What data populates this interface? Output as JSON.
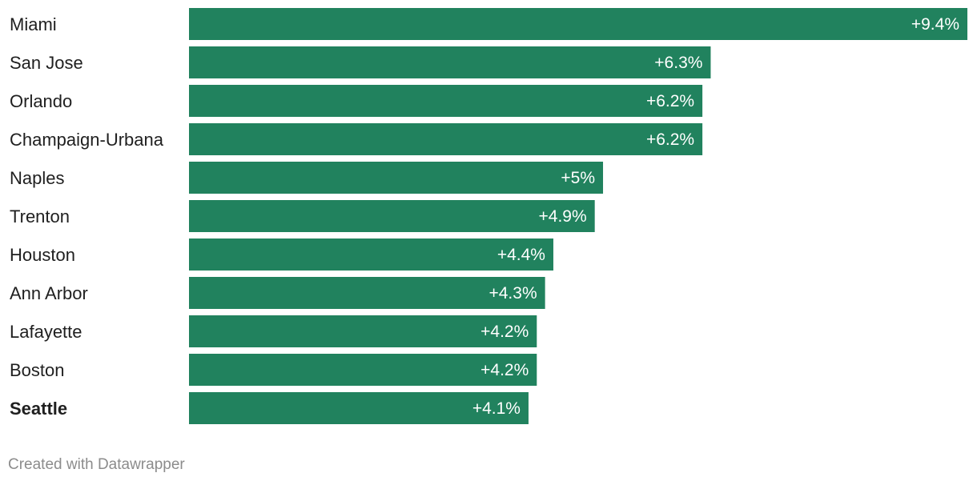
{
  "colors": {
    "bar": "#21825e",
    "label": "#1f1f1f",
    "value_label": "#ffffff",
    "credit": "#8c8c8c"
  },
  "chart_data": {
    "type": "bar",
    "orientation": "horizontal",
    "categories": [
      "Miami",
      "San Jose",
      "Orlando",
      "Champaign-Urbana",
      "Naples",
      "Trenton",
      "Houston",
      "Ann Arbor",
      "Lafayette",
      "Boston",
      "Seattle"
    ],
    "values": [
      9.4,
      6.3,
      6.2,
      6.2,
      5,
      4.9,
      4.4,
      4.3,
      4.2,
      4.2,
      4.1
    ],
    "value_labels": [
      "+9.4%",
      "+6.3%",
      "+6.2%",
      "+6.2%",
      "+5%",
      "+4.9%",
      "+4.4%",
      "+4.3%",
      "+4.2%",
      "+4.2%",
      "+4.1%"
    ],
    "highlighted": [
      "Seattle"
    ],
    "xlim": [
      0,
      9.4
    ],
    "grid": false,
    "legend": "none",
    "title": "",
    "xlabel": "",
    "ylabel": ""
  },
  "footer": {
    "credit": "Created with Datawrapper"
  }
}
